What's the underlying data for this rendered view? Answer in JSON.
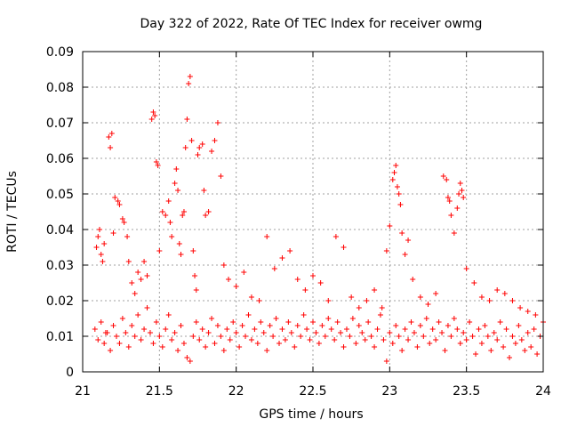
{
  "chart_data": {
    "type": "scatter",
    "title": "Day 322 of 2022, Rate Of TEC Index for receiver owmg",
    "xlabel": "GPS time / hours",
    "ylabel": "ROTI / TECUs",
    "xlim": [
      21,
      24
    ],
    "ylim": [
      0,
      0.09
    ],
    "xticks": [
      "21",
      "21.5",
      "22",
      "22.5",
      "23",
      "23.5",
      "24"
    ],
    "yticks": [
      "0",
      "0.01",
      "0.02",
      "0.03",
      "0.04",
      "0.05",
      "0.06",
      "0.07",
      "0.08",
      "0.09"
    ],
    "grid": true,
    "legend": "none",
    "marker": "plus",
    "color": "#ff0000",
    "series": [
      {
        "x": [
          21.09,
          21.1,
          21.11,
          21.12,
          21.13,
          21.14,
          21.15,
          21.17,
          21.18,
          21.19,
          21.2,
          21.21,
          21.23,
          21.24,
          21.26,
          21.27,
          21.29,
          21.3,
          21.32,
          21.34,
          21.36,
          21.38,
          21.4,
          21.42,
          21.45,
          21.46,
          21.47,
          21.48,
          21.49,
          21.5,
          21.52,
          21.54,
          21.56,
          21.57,
          21.58,
          21.6,
          21.61,
          21.62,
          21.63,
          21.64,
          21.65,
          21.66,
          21.67,
          21.68,
          21.69,
          21.7,
          21.71,
          21.72,
          21.73,
          21.74,
          21.75,
          21.76,
          21.78,
          21.79,
          21.8,
          21.82,
          21.84,
          21.86,
          21.88,
          21.9,
          21.92,
          21.95,
          22.0,
          22.05,
          22.1,
          22.15,
          22.2,
          22.25,
          22.3,
          22.35,
          22.4,
          22.45,
          22.5,
          22.55,
          22.6,
          22.65,
          22.7,
          22.75,
          22.8,
          22.85,
          22.9,
          22.95,
          22.98,
          23.0,
          23.02,
          23.03,
          23.04,
          23.05,
          23.06,
          23.07,
          23.08,
          23.1,
          23.12,
          23.15,
          23.2,
          23.25,
          23.3,
          23.35,
          23.37,
          23.38,
          23.39,
          23.4,
          23.42,
          23.44,
          23.45,
          23.46,
          23.47,
          23.48,
          23.5,
          23.55,
          23.6,
          23.65,
          23.7,
          23.75,
          23.8,
          23.85,
          23.9,
          23.95,
          24.0
        ],
        "y": [
          0.035,
          0.038,
          0.04,
          0.033,
          0.031,
          0.036,
          0.011,
          0.066,
          0.063,
          0.067,
          0.039,
          0.049,
          0.048,
          0.047,
          0.043,
          0.042,
          0.038,
          0.031,
          0.025,
          0.022,
          0.028,
          0.026,
          0.031,
          0.027,
          0.071,
          0.073,
          0.072,
          0.059,
          0.058,
          0.034,
          0.045,
          0.044,
          0.048,
          0.042,
          0.038,
          0.053,
          0.057,
          0.051,
          0.036,
          0.033,
          0.044,
          0.045,
          0.063,
          0.071,
          0.081,
          0.083,
          0.065,
          0.034,
          0.027,
          0.023,
          0.061,
          0.063,
          0.064,
          0.051,
          0.044,
          0.045,
          0.062,
          0.065,
          0.07,
          0.055,
          0.03,
          0.026,
          0.024,
          0.028,
          0.021,
          0.02,
          0.038,
          0.029,
          0.032,
          0.034,
          0.026,
          0.023,
          0.027,
          0.025,
          0.02,
          0.038,
          0.035,
          0.021,
          0.018,
          0.02,
          0.023,
          0.018,
          0.034,
          0.041,
          0.054,
          0.056,
          0.058,
          0.052,
          0.05,
          0.047,
          0.039,
          0.033,
          0.037,
          0.026,
          0.021,
          0.019,
          0.022,
          0.055,
          0.054,
          0.049,
          0.048,
          0.044,
          0.039,
          0.046,
          0.05,
          0.053,
          0.051,
          0.049,
          0.029,
          0.025,
          0.021,
          0.02,
          0.023,
          0.022,
          0.02,
          0.018,
          0.017,
          0.016,
          0.014
        ]
      },
      {
        "x": [
          21.08,
          21.1,
          21.12,
          21.14,
          21.16,
          21.18,
          21.2,
          21.22,
          21.24,
          21.26,
          21.28,
          21.3,
          21.32,
          21.34,
          21.36,
          21.38,
          21.4,
          21.42,
          21.44,
          21.46,
          21.48,
          21.5,
          21.52,
          21.54,
          21.56,
          21.58,
          21.6,
          21.62,
          21.64,
          21.66,
          21.68,
          21.7,
          21.72,
          21.74,
          21.76,
          21.78,
          21.8,
          21.82,
          21.84,
          21.86,
          21.88,
          21.9,
          21.92,
          21.94,
          21.96,
          21.98,
          22.0,
          22.02,
          22.04,
          22.06,
          22.08,
          22.1,
          22.12,
          22.14,
          22.16,
          22.18,
          22.2,
          22.22,
          22.24,
          22.26,
          22.28,
          22.3,
          22.32,
          22.34,
          22.36,
          22.38,
          22.4,
          22.42,
          22.44,
          22.46,
          22.48,
          22.5,
          22.52,
          22.54,
          22.56,
          22.58,
          22.6,
          22.62,
          22.64,
          22.66,
          22.68,
          22.7,
          22.72,
          22.74,
          22.76,
          22.78,
          22.8,
          22.82,
          22.84,
          22.86,
          22.88,
          22.9,
          22.92,
          22.94,
          22.96,
          22.98,
          23.0,
          23.02,
          23.04,
          23.06,
          23.08,
          23.1,
          23.12,
          23.14,
          23.16,
          23.18,
          23.2,
          23.22,
          23.24,
          23.26,
          23.28,
          23.3,
          23.32,
          23.34,
          23.36,
          23.38,
          23.4,
          23.42,
          23.44,
          23.46,
          23.48,
          23.5,
          23.52,
          23.54,
          23.56,
          23.58,
          23.6,
          23.62,
          23.64,
          23.66,
          23.68,
          23.7,
          23.72,
          23.74,
          23.76,
          23.78,
          23.8,
          23.82,
          23.84,
          23.86,
          23.88,
          23.9,
          23.92,
          23.94,
          23.96,
          23.98
        ],
        "y": [
          0.012,
          0.009,
          0.014,
          0.008,
          0.011,
          0.006,
          0.013,
          0.01,
          0.008,
          0.015,
          0.011,
          0.007,
          0.013,
          0.01,
          0.016,
          0.009,
          0.012,
          0.018,
          0.011,
          0.008,
          0.014,
          0.01,
          0.007,
          0.012,
          0.016,
          0.009,
          0.011,
          0.006,
          0.013,
          0.008,
          0.004,
          0.003,
          0.01,
          0.014,
          0.009,
          0.012,
          0.007,
          0.011,
          0.015,
          0.008,
          0.013,
          0.01,
          0.006,
          0.012,
          0.009,
          0.014,
          0.011,
          0.007,
          0.013,
          0.01,
          0.016,
          0.009,
          0.012,
          0.008,
          0.014,
          0.011,
          0.006,
          0.013,
          0.01,
          0.015,
          0.008,
          0.012,
          0.009,
          0.014,
          0.011,
          0.007,
          0.013,
          0.01,
          0.016,
          0.012,
          0.009,
          0.014,
          0.011,
          0.008,
          0.013,
          0.01,
          0.015,
          0.012,
          0.009,
          0.014,
          0.011,
          0.007,
          0.012,
          0.01,
          0.015,
          0.008,
          0.013,
          0.011,
          0.009,
          0.014,
          0.01,
          0.007,
          0.012,
          0.016,
          0.009,
          0.003,
          0.011,
          0.008,
          0.013,
          0.01,
          0.006,
          0.012,
          0.009,
          0.014,
          0.011,
          0.007,
          0.013,
          0.01,
          0.015,
          0.008,
          0.012,
          0.009,
          0.014,
          0.011,
          0.006,
          0.013,
          0.01,
          0.015,
          0.012,
          0.008,
          0.011,
          0.009,
          0.014,
          0.01,
          0.005,
          0.012,
          0.008,
          0.013,
          0.01,
          0.006,
          0.011,
          0.009,
          0.014,
          0.007,
          0.012,
          0.004,
          0.01,
          0.008,
          0.013,
          0.009,
          0.006,
          0.011,
          0.007,
          0.012,
          0.005,
          0.01
        ]
      }
    ]
  }
}
